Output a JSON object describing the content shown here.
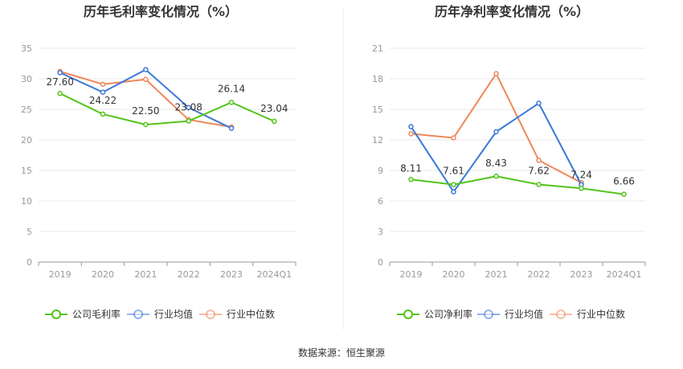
{
  "source": "数据来源：恒生聚源",
  "chart_data": [
    {
      "type": "line",
      "title": "历年毛利率变化情况（%）",
      "categories": [
        "2019",
        "2020",
        "2021",
        "2022",
        "2023",
        "2024Q1"
      ],
      "ylim": [
        0,
        35
      ],
      "yticks": [
        "0",
        "5",
        "10",
        "15",
        "20",
        "25",
        "30",
        "35"
      ],
      "grid": true,
      "legend_position": "bottom",
      "series": [
        {
          "name": "公司毛利率",
          "color": "#52c41a",
          "values": [
            27.6,
            24.22,
            22.5,
            23.08,
            26.14,
            23.04
          ],
          "labels": [
            "27.60",
            "24.22",
            "22.50",
            "23.08",
            "26.14",
            "23.04"
          ]
        },
        {
          "name": "行业均值",
          "color": "#3c78d8",
          "values": [
            31.0,
            27.8,
            31.5,
            25.3,
            21.9,
            null
          ]
        },
        {
          "name": "行业中位数",
          "color": "#f0875a",
          "values": [
            31.2,
            29.1,
            29.9,
            23.3,
            22.1,
            null
          ]
        }
      ]
    },
    {
      "type": "line",
      "title": "历年净利率变化情况（%）",
      "categories": [
        "2019",
        "2020",
        "2021",
        "2022",
        "2023",
        "2024Q1"
      ],
      "ylim": [
        0,
        21
      ],
      "yticks": [
        "0",
        "3",
        "6",
        "9",
        "12",
        "15",
        "18",
        "21"
      ],
      "grid": true,
      "legend_position": "bottom",
      "series": [
        {
          "name": "公司净利率",
          "color": "#52c41a",
          "values": [
            8.11,
            7.61,
            8.43,
            7.62,
            7.24,
            6.66
          ],
          "labels": [
            "8.11",
            "7.61",
            "8.43",
            "7.62",
            "7.24",
            "6.66"
          ]
        },
        {
          "name": "行业均值",
          "color": "#3c78d8",
          "values": [
            13.3,
            6.9,
            12.8,
            15.6,
            7.6,
            null
          ]
        },
        {
          "name": "行业中位数",
          "color": "#f0875a",
          "values": [
            12.6,
            12.2,
            18.5,
            10.0,
            7.8,
            null
          ]
        }
      ]
    }
  ]
}
